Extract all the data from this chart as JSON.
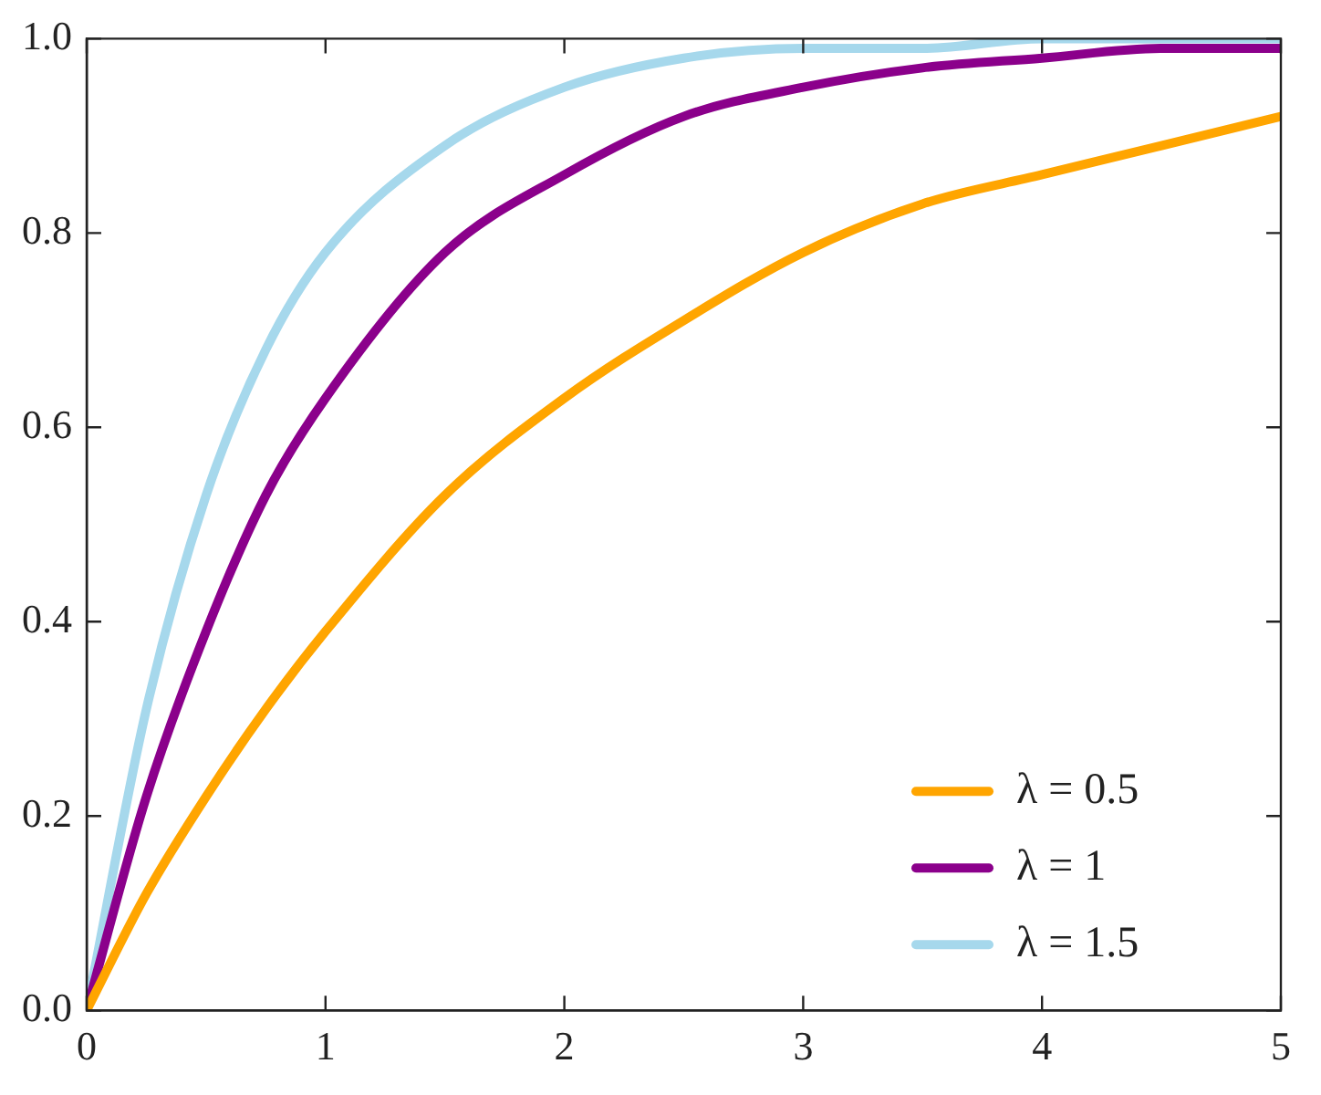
{
  "chart_data": {
    "type": "line",
    "x": [
      0,
      0.25,
      0.5,
      0.75,
      1,
      1.5,
      2,
      2.5,
      3,
      3.5,
      4,
      4.5,
      5
    ],
    "series": [
      {
        "name": "λ = 0.5",
        "color": "#ffa500",
        "values": [
          0,
          0.12,
          0.22,
          0.31,
          0.39,
          0.53,
          0.63,
          0.71,
          0.78,
          0.83,
          0.86,
          0.89,
          0.92
        ]
      },
      {
        "name": "λ = 1",
        "color": "#8b008b",
        "values": [
          0,
          0.22,
          0.39,
          0.53,
          0.63,
          0.78,
          0.86,
          0.92,
          0.95,
          0.97,
          0.98,
          0.99,
          0.99
        ]
      },
      {
        "name": "λ = 1.5",
        "color": "#a6d8ec",
        "values": [
          0,
          0.31,
          0.53,
          0.68,
          0.78,
          0.89,
          0.95,
          0.98,
          0.99,
          0.99,
          1.0,
          1.0,
          1.0
        ]
      }
    ],
    "xlim": [
      0,
      5
    ],
    "xticks": [
      0,
      1,
      2,
      3,
      4,
      5
    ],
    "ylim": [
      0,
      1
    ],
    "yticks": [
      {
        "value": 0,
        "label": "0.0"
      },
      {
        "value": 0.2,
        "label": "0.2"
      },
      {
        "value": 0.4,
        "label": "0.4"
      },
      {
        "value": 0.6,
        "label": "0.6"
      },
      {
        "value": 0.8,
        "label": "0.8"
      },
      {
        "value": 1,
        "label": "1.0"
      }
    ],
    "legend": "bottom right",
    "marker": "none",
    "line_style": "solid"
  }
}
